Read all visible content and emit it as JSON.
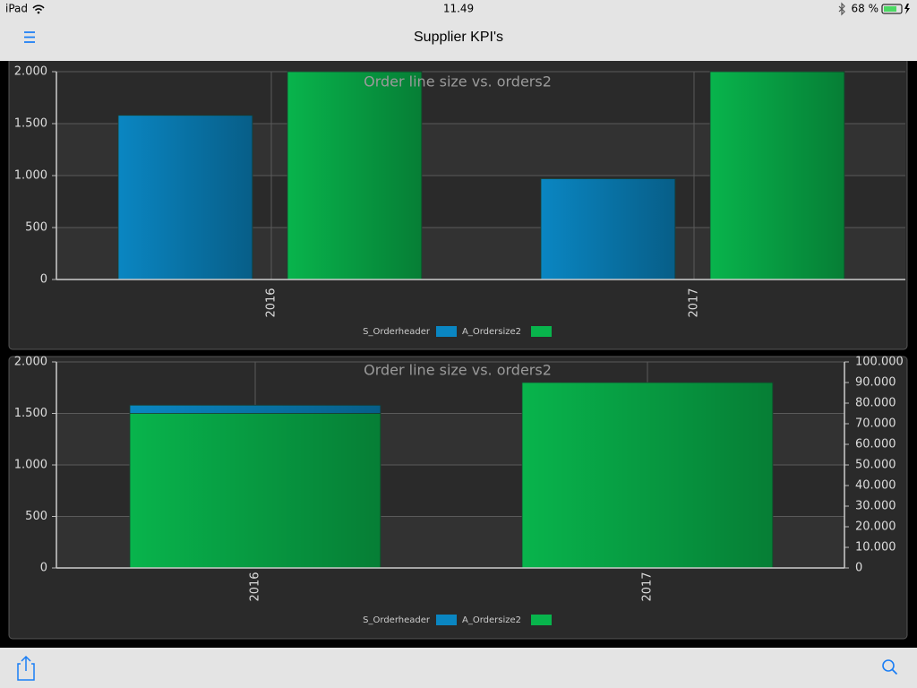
{
  "status_bar": {
    "device": "iPad",
    "time": "11.49",
    "battery": "68 %"
  },
  "nav_bar": {
    "title": "Supplier KPI's"
  },
  "chart_data": [
    {
      "type": "bar",
      "barmode": "group",
      "title": "Order line size vs. orders2",
      "categories": [
        "2016",
        "2017"
      ],
      "series": [
        {
          "name": "S_Orderheader",
          "color": "#0a86c2",
          "values": [
            1580,
            970
          ]
        },
        {
          "name": "A_Ordersize2",
          "color": "#08b44c",
          "values": [
            2000,
            2000
          ]
        }
      ],
      "ylim": [
        0,
        2000
      ],
      "yticks": [
        0,
        500,
        {
          "value": 1000,
          "label": "1.000"
        },
        {
          "value": 1500,
          "label": "1.500"
        },
        {
          "value": 2000,
          "label": "2.000"
        }
      ],
      "grid": true,
      "legend": "bottom"
    },
    {
      "type": "bar",
      "barmode": "overlay",
      "title": "Order line size vs. orders2",
      "categories": [
        "2016",
        "2017"
      ],
      "series": [
        {
          "name": "S_Orderheader",
          "color": "#0a86c2",
          "values": [
            1580,
            null
          ]
        },
        {
          "name": "A_Ordersize2",
          "color": "#08b44c",
          "values": [
            75000,
            90000
          ],
          "axis": "y2"
        }
      ],
      "ylim": [
        0,
        2000
      ],
      "yticks": [
        0,
        500,
        {
          "value": 1000,
          "label": "1.000"
        },
        {
          "value": 1500,
          "label": "1.500"
        },
        {
          "value": 2000,
          "label": "2.000"
        }
      ],
      "y2lim": [
        0,
        100000
      ],
      "y2ticks": [
        0,
        {
          "value": 10000,
          "label": "10.000"
        },
        {
          "value": 20000,
          "label": "20.000"
        },
        {
          "value": 30000,
          "label": "30.000"
        },
        {
          "value": 40000,
          "label": "40.000"
        },
        {
          "value": 50000,
          "label": "50.000"
        },
        {
          "value": 60000,
          "label": "60.000"
        },
        {
          "value": 70000,
          "label": "70.000"
        },
        {
          "value": 80000,
          "label": "80.000"
        },
        {
          "value": 90000,
          "label": "90.000"
        },
        {
          "value": 100000,
          "label": "100.000"
        }
      ],
      "grid": true,
      "legend": "bottom"
    }
  ]
}
